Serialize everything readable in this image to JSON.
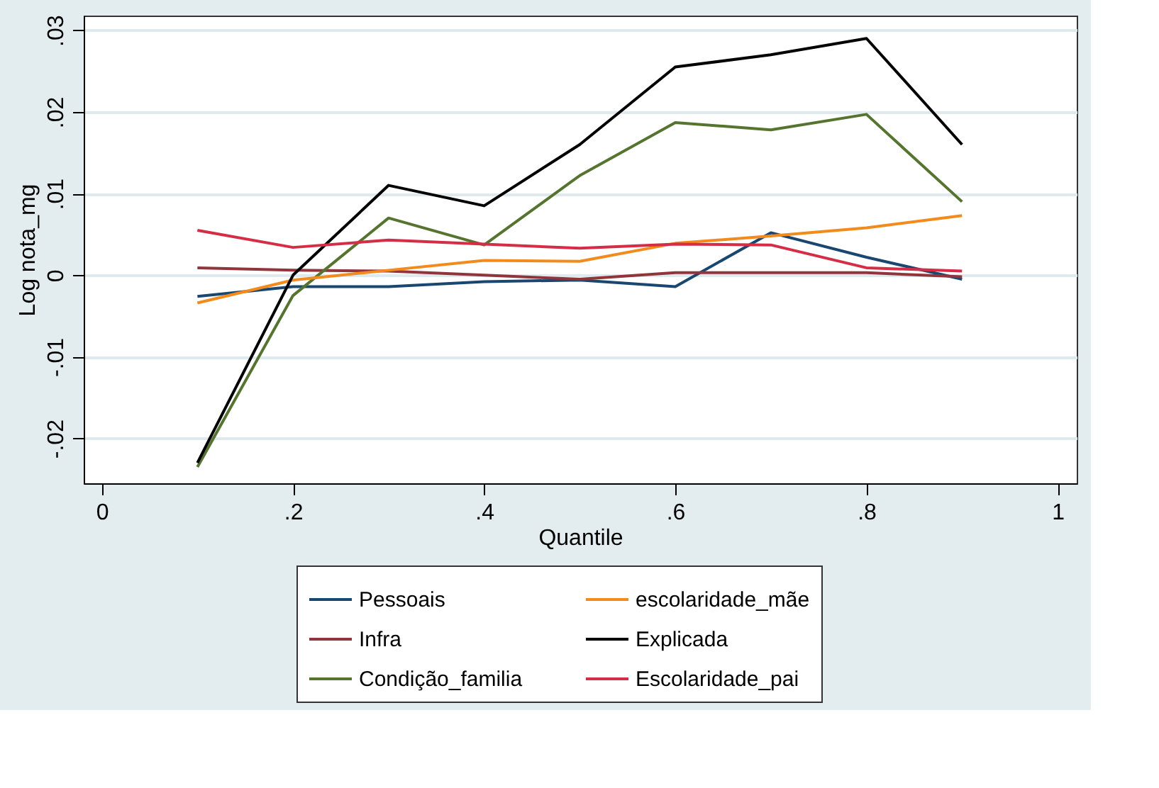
{
  "chart_data": {
    "type": "line",
    "xlabel": "Quantile",
    "ylabel": "Log nota_mg",
    "x": [
      0.1,
      0.2,
      0.3,
      0.4,
      0.5,
      0.6,
      0.7,
      0.8,
      0.9
    ],
    "series": [
      {
        "name": "Pessoais",
        "color": "#1a476f",
        "values": [
          -0.0026,
          -0.0014,
          -0.0014,
          -0.0008,
          -0.0006,
          -0.0014,
          0.0052,
          0.0022,
          -0.0005
        ]
      },
      {
        "name": "Infra",
        "color": "#90353b",
        "values": [
          0.0009,
          0.0006,
          0.0005,
          0.0,
          -0.0005,
          0.0003,
          0.0003,
          0.0003,
          -0.0002
        ]
      },
      {
        "name": "Condição_familia",
        "color": "#55752f",
        "values": [
          -0.0235,
          -0.0025,
          0.007,
          0.0037,
          0.0122,
          0.0187,
          0.0178,
          0.0197,
          0.009
        ]
      },
      {
        "name": "escolaridade_mãe",
        "color": "#f28a1c",
        "values": [
          -0.0034,
          -0.0006,
          0.0006,
          0.0018,
          0.0017,
          0.0039,
          0.0048,
          0.0058,
          0.0073
        ]
      },
      {
        "name": "Explicada",
        "color": "#000000",
        "values": [
          -0.023,
          0.0,
          0.011,
          0.0085,
          0.016,
          0.0255,
          0.027,
          0.029,
          0.016
        ]
      },
      {
        "name": "Escolaridade_pai",
        "color": "#d62d47",
        "values": [
          0.0055,
          0.0034,
          0.0043,
          0.0038,
          0.0033,
          0.0038,
          0.0037,
          0.0009,
          0.0005
        ]
      }
    ],
    "xlim": [
      -0.019,
      1.02
    ],
    "xticks": [
      0,
      {
        "value": 0.2,
        "label": ".2"
      },
      {
        "value": 0.4,
        "label": ".4"
      },
      {
        "value": 0.6,
        "label": ".6"
      },
      {
        "value": 0.8,
        "label": ".8"
      },
      1
    ],
    "ylim": [
      -0.0255,
      0.0318
    ],
    "yticks": [
      {
        "value": -0.02,
        "label": "-.02"
      },
      {
        "value": -0.01,
        "label": "-.01"
      },
      0,
      {
        "value": 0.01,
        "label": ".01"
      },
      {
        "value": 0.02,
        "label": ".02"
      },
      {
        "value": 0.03,
        "label": ".03"
      }
    ],
    "grid": "y",
    "legend": "bottom",
    "line_style": "solid"
  }
}
